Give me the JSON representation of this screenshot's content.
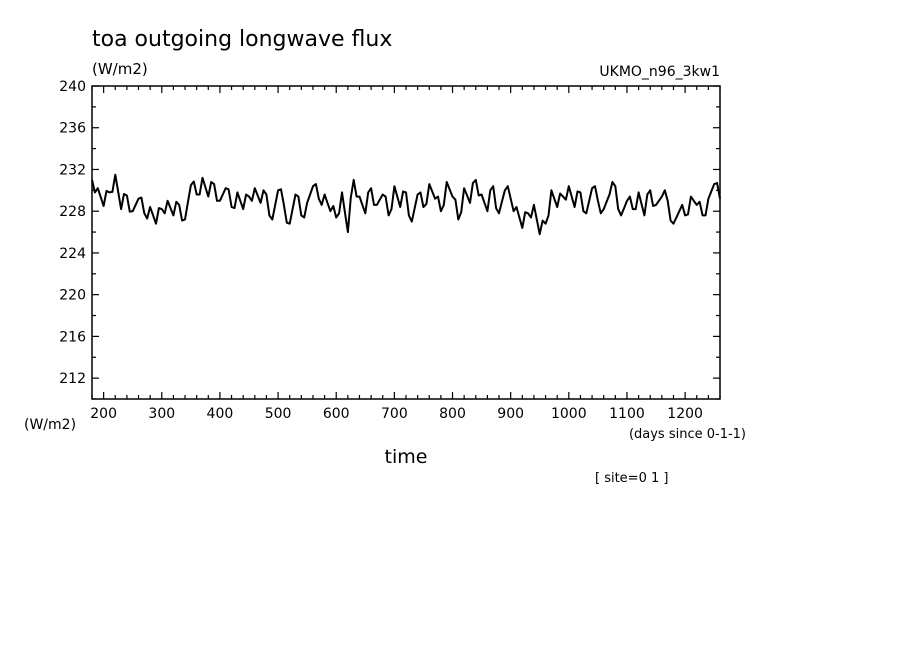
{
  "chart_data": {
    "type": "line",
    "title": "toa outgoing longwave flux",
    "units_label": "(W/m2)",
    "model_label": "UKMO_n96_3kw1",
    "yaxis_unit_label": "(W/m2)",
    "xlabel": "time",
    "xunits": "(days since 0-1-1)",
    "site_label": "[ site=0 1 ]",
    "xlim": [
      180,
      1260
    ],
    "ylim": [
      210,
      240
    ],
    "xticks": [
      200,
      300,
      400,
      500,
      600,
      700,
      800,
      900,
      1000,
      1100,
      1200
    ],
    "yticks": [
      212,
      216,
      220,
      224,
      228,
      232,
      236,
      240
    ],
    "line_color": "#000000",
    "grid": false,
    "series": [
      {
        "x": [
          180,
          190,
          200,
          210,
          220,
          230,
          240,
          250,
          260,
          270,
          280,
          290,
          300,
          310,
          320,
          330,
          340,
          350,
          360,
          370,
          380,
          390,
          400,
          410,
          420,
          430,
          440,
          450,
          460,
          470,
          480,
          490,
          500,
          510,
          520,
          530,
          540,
          550,
          560,
          570,
          580,
          590,
          600,
          610,
          620,
          630,
          640,
          650,
          660,
          670,
          680,
          690,
          700,
          710,
          720,
          730,
          740,
          750,
          760,
          770,
          780,
          790,
          800,
          810,
          820,
          830,
          840,
          850,
          860,
          870,
          880,
          890,
          900,
          910,
          920,
          930,
          940,
          950,
          960,
          970,
          980,
          990,
          1000,
          1010,
          1020,
          1030,
          1040,
          1050,
          1060,
          1070,
          1080,
          1090,
          1100,
          1110,
          1120,
          1130,
          1140,
          1150,
          1160,
          1170,
          1180,
          1190,
          1200,
          1210,
          1220,
          1230,
          1240,
          1250,
          1260
        ],
        "values": [
          231.0,
          230.2,
          228.5,
          229.8,
          231.5,
          228.2,
          229.5,
          228.0,
          229.2,
          227.8,
          228.4,
          226.8,
          228.2,
          229.0,
          227.6,
          228.6,
          227.2,
          230.5,
          229.6,
          231.2,
          229.4,
          230.6,
          229.0,
          230.2,
          228.4,
          229.8,
          228.2,
          229.4,
          230.2,
          228.8,
          229.6,
          227.2,
          230.0,
          228.6,
          226.8,
          229.6,
          227.6,
          228.8,
          230.4,
          229.2,
          229.6,
          228.0,
          227.4,
          229.8,
          226.0,
          231.0,
          229.4,
          227.8,
          230.2,
          228.6,
          229.6,
          227.6,
          230.4,
          228.4,
          229.8,
          227.0,
          229.6,
          228.4,
          230.6,
          229.2,
          228.0,
          230.8,
          229.4,
          227.2,
          230.2,
          228.8,
          231.0,
          229.6,
          228.0,
          230.4,
          227.8,
          230.0,
          229.2,
          228.4,
          226.4,
          227.8,
          228.6,
          225.8,
          226.8,
          230.0,
          228.4,
          229.4,
          230.4,
          228.4,
          229.8,
          227.8,
          230.2,
          229.0,
          228.2,
          229.6,
          230.4,
          227.6,
          229.0,
          228.2,
          229.8,
          227.6,
          230.0,
          228.6,
          229.4,
          229.0,
          226.8,
          228.0,
          227.6,
          229.4,
          228.6,
          227.6,
          229.2,
          230.6,
          229.2
        ]
      }
    ]
  }
}
